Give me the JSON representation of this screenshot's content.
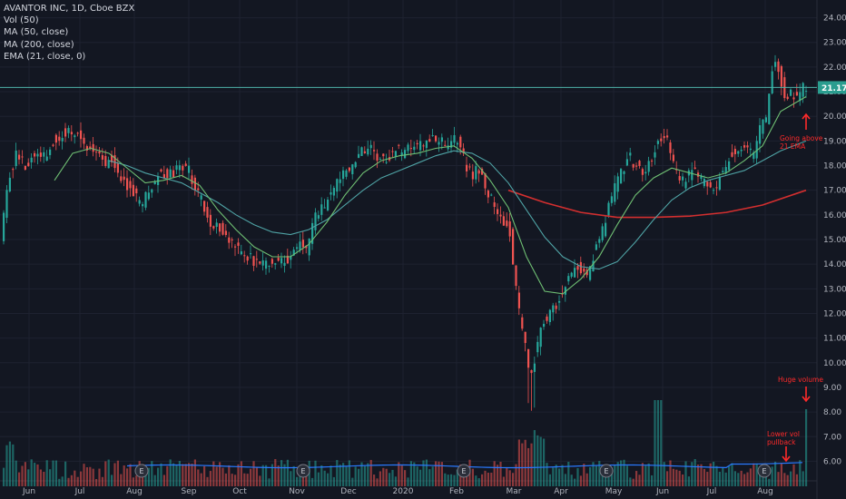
{
  "legend": {
    "title": "AVANTOR INC, 1D, Cboe BZX",
    "vol": "Vol (50)",
    "ma50": "MA (50, close)",
    "ma200": "MA (200, close)",
    "ema21": "EMA (21, close, 0)"
  },
  "colors": {
    "background": "#131722",
    "grid": "#1e2230",
    "axis_text": "#b2b5be",
    "up": "#26a69a",
    "down": "#ef5350",
    "ema21": "#6fbf73",
    "ma50": "#4fa3a5",
    "ma200": "#d32f2f",
    "resistance": "#4fb3a9",
    "price_tag": "#2a9d8f",
    "annotation": "#ff2a2a",
    "vol_ma": "#2979ff"
  },
  "chart_data": {
    "type": "candlestick",
    "title": "AVANTOR INC, 1D, Cboe BZX",
    "y_ticks": [
      "24.00",
      "23.00",
      "22.00",
      "21.00",
      "20.00",
      "19.00",
      "18.00",
      "17.00",
      "16.00",
      "15.00",
      "14.00",
      "13.00",
      "12.00",
      "11.00",
      "10.00",
      "9.00",
      "8.00",
      "7.00",
      "6.00"
    ],
    "ylim": [
      5.5,
      24.5
    ],
    "x_ticks": [
      "Jun",
      "Jul",
      "Aug",
      "Sep",
      "Oct",
      "Nov",
      "Dec",
      "2020",
      "Feb",
      "Mar",
      "Apr",
      "May",
      "Jun",
      "Jul",
      "Aug"
    ],
    "last_price": "21.17",
    "resistance_level": 21.17,
    "earnings_marker": "E",
    "earnings_count": 6,
    "annotations": [
      {
        "text": "Going above\n21 EMA"
      },
      {
        "text": "Huge volume"
      },
      {
        "text": "Lower vol\npullback"
      }
    ],
    "price_path": [
      [
        0,
        14.0
      ],
      [
        10,
        17.2
      ],
      [
        20,
        18.5
      ],
      [
        32,
        18.0
      ],
      [
        40,
        18.6
      ],
      [
        52,
        18.3
      ],
      [
        62,
        19.1
      ],
      [
        75,
        19.4
      ],
      [
        88,
        19.2
      ],
      [
        100,
        18.7
      ],
      [
        110,
        18.6
      ],
      [
        118,
        18.0
      ],
      [
        126,
        18.4
      ],
      [
        134,
        17.6
      ],
      [
        142,
        17.2
      ],
      [
        150,
        16.8
      ],
      [
        158,
        16.3
      ],
      [
        168,
        17.2
      ],
      [
        178,
        17.7
      ],
      [
        188,
        17.6
      ],
      [
        198,
        17.9
      ],
      [
        210,
        17.8
      ],
      [
        218,
        17.1
      ],
      [
        226,
        16.4
      ],
      [
        234,
        15.7
      ],
      [
        244,
        15.5
      ],
      [
        254,
        15.0
      ],
      [
        262,
        14.6
      ],
      [
        270,
        14.3
      ],
      [
        280,
        14.2
      ],
      [
        290,
        13.9
      ],
      [
        300,
        14.2
      ],
      [
        310,
        14.1
      ],
      [
        322,
        14.2
      ],
      [
        332,
        14.9
      ],
      [
        340,
        14.5
      ],
      [
        348,
        15.8
      ],
      [
        358,
        16.3
      ],
      [
        368,
        16.9
      ],
      [
        378,
        17.6
      ],
      [
        388,
        17.9
      ],
      [
        398,
        18.6
      ],
      [
        408,
        18.7
      ],
      [
        418,
        18.4
      ],
      [
        428,
        18.3
      ],
      [
        438,
        18.6
      ],
      [
        448,
        18.5
      ],
      [
        458,
        18.8
      ],
      [
        468,
        18.8
      ],
      [
        478,
        19.2
      ],
      [
        488,
        18.9
      ],
      [
        498,
        18.9
      ],
      [
        508,
        19.1
      ],
      [
        514,
        18.1
      ],
      [
        522,
        17.6
      ],
      [
        530,
        17.9
      ],
      [
        540,
        16.8
      ],
      [
        548,
        16.3
      ],
      [
        556,
        15.8
      ],
      [
        564,
        15.3
      ],
      [
        570,
        13.2
      ],
      [
        576,
        11.6
      ],
      [
        581,
        10.6
      ],
      [
        587,
        9.3
      ],
      [
        593,
        10.6
      ],
      [
        600,
        11.6
      ],
      [
        608,
        11.9
      ],
      [
        616,
        12.4
      ],
      [
        624,
        13.0
      ],
      [
        632,
        13.7
      ],
      [
        640,
        13.9
      ],
      [
        648,
        13.4
      ],
      [
        656,
        14.4
      ],
      [
        664,
        15.0
      ],
      [
        672,
        16.2
      ],
      [
        680,
        17.1
      ],
      [
        688,
        17.9
      ],
      [
        696,
        18.3
      ],
      [
        704,
        18.0
      ],
      [
        712,
        17.3
      ],
      [
        720,
        18.4
      ],
      [
        728,
        18.9
      ],
      [
        736,
        19.1
      ],
      [
        744,
        18.0
      ],
      [
        752,
        17.2
      ],
      [
        760,
        17.6
      ],
      [
        768,
        17.8
      ],
      [
        776,
        17.3
      ],
      [
        784,
        17.0
      ],
      [
        792,
        17.2
      ],
      [
        800,
        17.9
      ],
      [
        808,
        18.5
      ],
      [
        816,
        18.8
      ],
      [
        824,
        18.7
      ],
      [
        832,
        18.4
      ],
      [
        840,
        19.5
      ],
      [
        846,
        19.8
      ],
      [
        850,
        21.3
      ],
      [
        856,
        22.5
      ],
      [
        862,
        21.6
      ],
      [
        868,
        20.6
      ],
      [
        874,
        20.9
      ],
      [
        880,
        20.8
      ],
      [
        886,
        21.2
      ]
    ],
    "ema21_path": [
      [
        60,
        17.4
      ],
      [
        80,
        18.5
      ],
      [
        100,
        18.7
      ],
      [
        120,
        18.5
      ],
      [
        140,
        17.9
      ],
      [
        160,
        17.3
      ],
      [
        180,
        17.4
      ],
      [
        200,
        17.6
      ],
      [
        220,
        17.2
      ],
      [
        240,
        16.2
      ],
      [
        260,
        15.4
      ],
      [
        280,
        14.7
      ],
      [
        300,
        14.3
      ],
      [
        320,
        14.3
      ],
      [
        340,
        14.8
      ],
      [
        360,
        15.7
      ],
      [
        380,
        16.8
      ],
      [
        400,
        17.7
      ],
      [
        420,
        18.2
      ],
      [
        440,
        18.4
      ],
      [
        460,
        18.5
      ],
      [
        480,
        18.7
      ],
      [
        500,
        18.8
      ],
      [
        520,
        18.3
      ],
      [
        540,
        17.4
      ],
      [
        560,
        16.3
      ],
      [
        580,
        14.3
      ],
      [
        600,
        12.9
      ],
      [
        620,
        12.8
      ],
      [
        640,
        13.4
      ],
      [
        660,
        14.3
      ],
      [
        680,
        15.6
      ],
      [
        700,
        16.8
      ],
      [
        720,
        17.5
      ],
      [
        740,
        17.9
      ],
      [
        760,
        17.7
      ],
      [
        780,
        17.5
      ],
      [
        800,
        17.7
      ],
      [
        820,
        18.2
      ],
      [
        840,
        18.8
      ],
      [
        860,
        20.2
      ],
      [
        888,
        20.8
      ]
    ],
    "ma50_path": [
      [
        120,
        18.2
      ],
      [
        140,
        18.0
      ],
      [
        160,
        17.7
      ],
      [
        180,
        17.5
      ],
      [
        200,
        17.3
      ],
      [
        220,
        16.9
      ],
      [
        240,
        16.5
      ],
      [
        260,
        16.0
      ],
      [
        280,
        15.6
      ],
      [
        300,
        15.3
      ],
      [
        320,
        15.2
      ],
      [
        340,
        15.4
      ],
      [
        360,
        15.8
      ],
      [
        380,
        16.4
      ],
      [
        400,
        17.0
      ],
      [
        420,
        17.5
      ],
      [
        440,
        17.8
      ],
      [
        460,
        18.1
      ],
      [
        480,
        18.4
      ],
      [
        500,
        18.6
      ],
      [
        520,
        18.5
      ],
      [
        540,
        18.1
      ],
      [
        560,
        17.3
      ],
      [
        580,
        16.2
      ],
      [
        600,
        15.1
      ],
      [
        620,
        14.3
      ],
      [
        640,
        13.9
      ],
      [
        660,
        13.8
      ],
      [
        680,
        14.1
      ],
      [
        700,
        14.9
      ],
      [
        720,
        15.8
      ],
      [
        740,
        16.6
      ],
      [
        760,
        17.1
      ],
      [
        780,
        17.4
      ],
      [
        800,
        17.6
      ],
      [
        820,
        17.8
      ],
      [
        840,
        18.2
      ],
      [
        860,
        18.6
      ],
      [
        888,
        19.0
      ]
    ],
    "ma200_path": [
      [
        560,
        17.0
      ],
      [
        600,
        16.5
      ],
      [
        640,
        16.1
      ],
      [
        680,
        15.9
      ],
      [
        720,
        15.9
      ],
      [
        760,
        15.95
      ],
      [
        800,
        16.1
      ],
      [
        840,
        16.4
      ],
      [
        888,
        17.0
      ]
    ],
    "volume_seed": 7
  }
}
